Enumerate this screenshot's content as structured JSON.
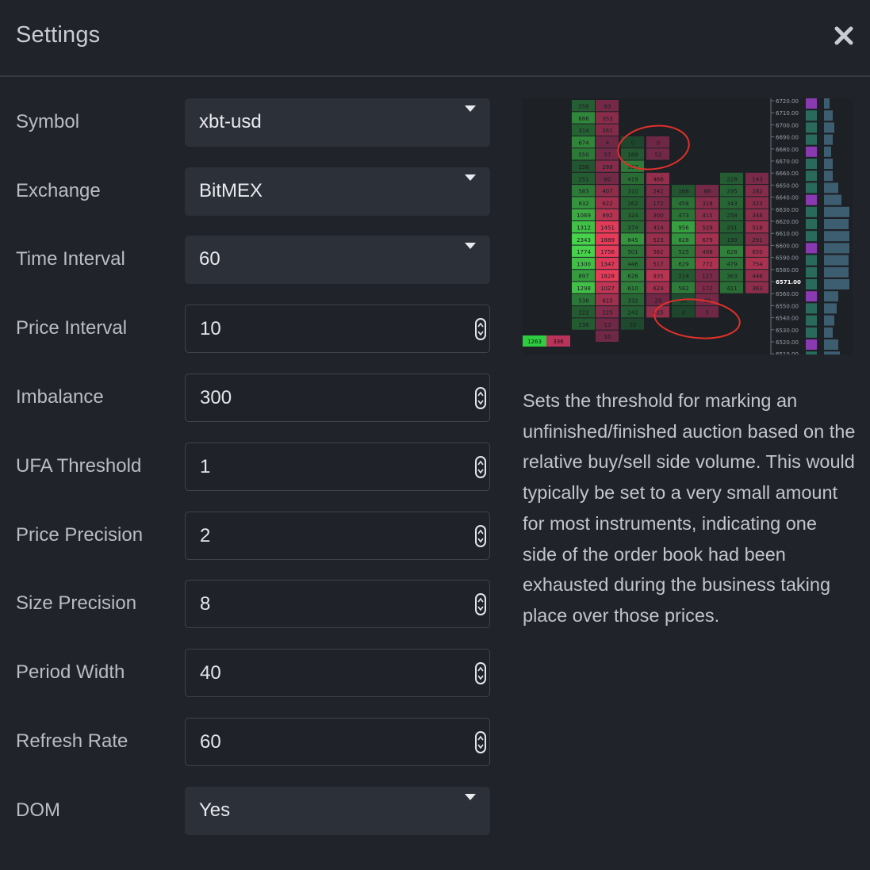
{
  "window": {
    "title": "Settings",
    "close_icon": "close-icon"
  },
  "fields": [
    {
      "key": "symbol",
      "label": "Symbol",
      "type": "select",
      "value": "xbt-usd"
    },
    {
      "key": "exchange",
      "label": "Exchange",
      "type": "select",
      "value": "BitMEX"
    },
    {
      "key": "time_interval",
      "label": "Time Interval",
      "type": "select",
      "value": "60"
    },
    {
      "key": "price_interval",
      "label": "Price Interval",
      "type": "number",
      "value": "10"
    },
    {
      "key": "imbalance",
      "label": "Imbalance",
      "type": "number",
      "value": "300"
    },
    {
      "key": "ufa_threshold",
      "label": "UFA Threshold",
      "type": "number",
      "value": "1"
    },
    {
      "key": "price_precision",
      "label": "Price Precision",
      "type": "number",
      "value": "2"
    },
    {
      "key": "size_precision",
      "label": "Size Precision",
      "type": "number",
      "value": "8"
    },
    {
      "key": "period_width",
      "label": "Period Width",
      "type": "number",
      "value": "40"
    },
    {
      "key": "refresh_rate",
      "label": "Refresh Rate",
      "type": "number",
      "value": "60"
    },
    {
      "key": "dom",
      "label": "DOM",
      "type": "select",
      "value": "Yes"
    }
  ],
  "help": {
    "text": "Sets the threshold for marking an unfinished/finished auction based on the relative buy/sell side volume. This would typically be set to a very small amount for most instruments, indicating one side of the order book had been exhausted during the business taking place over those prices."
  },
  "preview": {
    "price_labels": [
      "6720.00",
      "6710.00",
      "6700.00",
      "6690.00",
      "6680.00",
      "6670.00",
      "6660.00",
      "6650.00",
      "6640.00",
      "6630.00",
      "6620.00",
      "6610.00",
      "6600.00",
      "6590.00",
      "6580.00",
      "6571.00",
      "6560.00",
      "6550.00",
      "6540.00",
      "6530.00",
      "6520.00",
      "6510.00"
    ],
    "current_price": "6571.00",
    "left_bar": [
      "1263",
      "336"
    ],
    "columns": [
      [
        "258",
        "686",
        "314",
        "674",
        "550",
        "156",
        "251",
        "583",
        "832",
        "1069",
        "1312",
        "2343",
        "1774",
        "1300",
        "897",
        "1298",
        "538",
        "222",
        "236",
        ""
      ],
      [
        "93",
        "353",
        "261",
        "4",
        "57",
        "288",
        "80",
        "407",
        "622",
        "892",
        "1451",
        "1889",
        "1756",
        "1347",
        "1828",
        "1027",
        "615",
        "225",
        "13",
        "10"
      ],
      [
        "",
        "",
        "",
        "0",
        "189",
        "557",
        "419",
        "310",
        "262",
        "324",
        "374",
        "845",
        "501",
        "446",
        "626",
        "610",
        "332",
        "242",
        "32",
        ""
      ],
      [
        "",
        "",
        "",
        "0",
        "52",
        "",
        "466",
        "242",
        "172",
        "300",
        "414",
        "523",
        "562",
        "517",
        "935",
        "624",
        "29",
        "425",
        "",
        ""
      ],
      [
        "",
        "",
        "",
        "",
        "",
        "",
        "",
        "166",
        "458",
        "473",
        "956",
        "828",
        "525",
        "629",
        "214",
        "582",
        "52",
        "0",
        "",
        ""
      ],
      [
        "",
        "",
        "",
        "",
        "",
        "",
        "",
        "88",
        "318",
        "415",
        "529",
        "679",
        "498",
        "772",
        "127",
        "172",
        "99",
        "5",
        "",
        ""
      ],
      [
        "",
        "",
        "",
        "",
        "",
        "",
        "228",
        "295",
        "343",
        "258",
        "251",
        "199",
        "628",
        "479",
        "363",
        "411",
        "",
        "",
        "",
        ""
      ],
      [
        "",
        "",
        "",
        "",
        "",
        "",
        "143",
        "282",
        "323",
        "348",
        "518",
        "291",
        "650",
        "754",
        "446",
        "363",
        "",
        "",
        "",
        ""
      ]
    ],
    "dom_levels": [
      0.2,
      0.3,
      0.35,
      0.3,
      0.25,
      0.3,
      0.3,
      0.5,
      0.6,
      0.9,
      0.85,
      0.9,
      0.9,
      0.85,
      0.85,
      0.9,
      0.5,
      0.45,
      0.35,
      0.3,
      0.5,
      0.55
    ]
  }
}
